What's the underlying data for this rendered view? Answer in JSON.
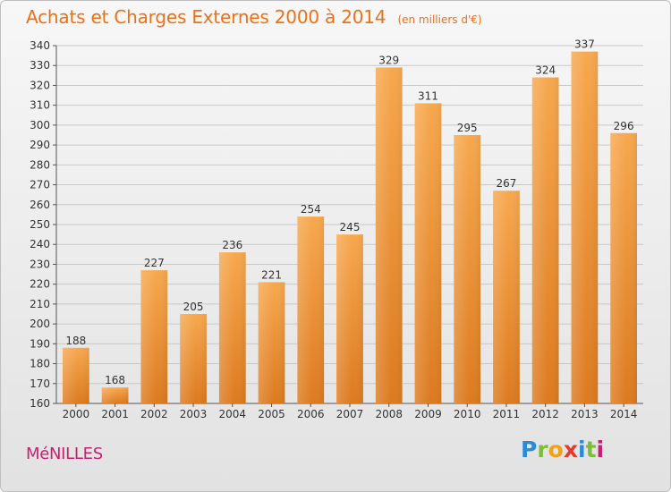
{
  "header": {
    "title": "Achats et Charges Externes 2000 à 2014",
    "unit": "(en milliers d'€)"
  },
  "commune": "MéNILLES",
  "logo": {
    "text": "Proxiti",
    "letters": [
      "P",
      "r",
      "o",
      "x",
      "i",
      "t",
      "i"
    ]
  },
  "colors": {
    "bar": "#f0922f",
    "bar_light": "#f5a24c",
    "bar_dark": "#d8731c",
    "title": "#e8711a",
    "commune": "#c8206f"
  },
  "chart_data": {
    "type": "bar",
    "title": "Achats et Charges Externes 2000 à 2014",
    "subtitle": "(en milliers d'€)",
    "categories": [
      "2000",
      "2001",
      "2002",
      "2003",
      "2004",
      "2005",
      "2006",
      "2007",
      "2008",
      "2009",
      "2010",
      "2011",
      "2012",
      "2013",
      "2014"
    ],
    "values": [
      188,
      168,
      227,
      205,
      236,
      221,
      254,
      245,
      329,
      311,
      295,
      267,
      324,
      337,
      296
    ],
    "ylim": [
      160,
      340
    ],
    "yticks": [
      160,
      170,
      180,
      190,
      200,
      210,
      220,
      230,
      240,
      250,
      260,
      270,
      280,
      290,
      300,
      310,
      320,
      330,
      340
    ],
    "grid": true,
    "legend": "none"
  }
}
